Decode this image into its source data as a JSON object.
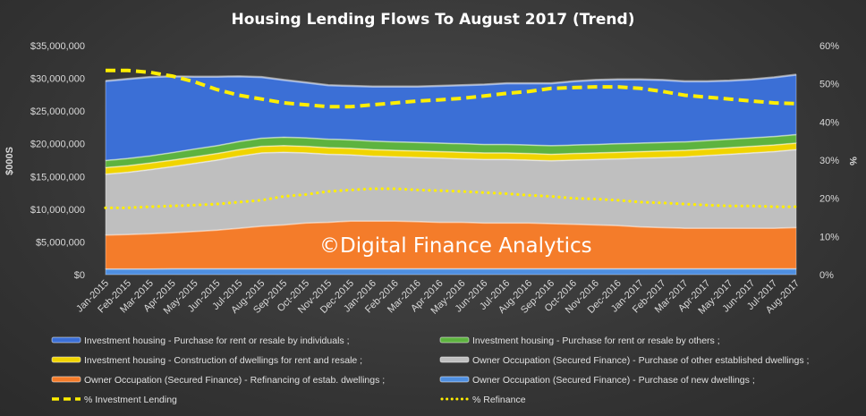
{
  "chart_data": {
    "type": "area",
    "title": "Housing Lending Flows To August 2017 (Trend)",
    "ylabel": "$000S",
    "y2label": "%",
    "ylim": [
      0,
      35000000
    ],
    "y2lim": [
      0,
      60
    ],
    "yticks": [
      "$0",
      "$5,000,000",
      "$10,000,000",
      "$15,000,000",
      "$20,000,000",
      "$25,000,000",
      "$30,000,000",
      "$35,000,000"
    ],
    "y2ticks": [
      "0%",
      "10%",
      "20%",
      "30%",
      "40%",
      "50%",
      "60%"
    ],
    "categories": [
      "Jan-2015",
      "Feb-2015",
      "Mar-2015",
      "Apr-2015",
      "May-2015",
      "Jun-2015",
      "Jul-2015",
      "Aug-2015",
      "Sep-2015",
      "Oct-2015",
      "Nov-2015",
      "Dec-2015",
      "Jan-2016",
      "Feb-2016",
      "Mar-2016",
      "Apr-2016",
      "May-2016",
      "Jun-2016",
      "Jul-2016",
      "Aug-2016",
      "Sep-2016",
      "Oct-2016",
      "Nov-2016",
      "Dec-2016",
      "Jan-2017",
      "Feb-2017",
      "Mar-2017",
      "Apr-2017",
      "May-2017",
      "Jun-2017",
      "Jul-2017",
      "Aug-2017"
    ],
    "stacked_series": [
      {
        "name": "Owner Occupation (Secured Finance) - Purchase of new dwellings ;",
        "color": "#4f8fe0",
        "values": [
          900000,
          900000,
          900000,
          950000,
          950000,
          950000,
          950000,
          950000,
          950000,
          950000,
          950000,
          950000,
          950000,
          950000,
          950000,
          950000,
          950000,
          950000,
          950000,
          950000,
          950000,
          950000,
          950000,
          950000,
          950000,
          950000,
          950000,
          950000,
          950000,
          950000,
          950000,
          950000
        ]
      },
      {
        "name": "Owner Occupation (Secured Finance) - Refinancing of estab. dwellings ;",
        "color": "#f47c2a",
        "values": [
          5200000,
          5300000,
          5400000,
          5500000,
          5700000,
          5900000,
          6200000,
          6500000,
          6700000,
          7000000,
          7100000,
          7300000,
          7300000,
          7300000,
          7200000,
          7100000,
          7100000,
          7000000,
          7000000,
          7000000,
          6900000,
          6800000,
          6700000,
          6600000,
          6400000,
          6300000,
          6200000,
          6200000,
          6200000,
          6200000,
          6200000,
          6300000
        ]
      },
      {
        "name": "Owner Occupation (Secured Finance) - Purchase of other established dwellings ;",
        "color": "#bfbfbf",
        "values": [
          9300000,
          9500000,
          9800000,
          10100000,
          10400000,
          10700000,
          11000000,
          11200000,
          11100000,
          10700000,
          10400000,
          10100000,
          9900000,
          9800000,
          9800000,
          9800000,
          9700000,
          9700000,
          9700000,
          9600000,
          9600000,
          9800000,
          10000000,
          10200000,
          10500000,
          10700000,
          10900000,
          11100000,
          11300000,
          11500000,
          11700000,
          11900000
        ]
      },
      {
        "name": "Investment housing - Construction of dwellings for rent and resale ;",
        "color": "#f0d400",
        "values": [
          1000000,
          1000000,
          1000000,
          1000000,
          1000000,
          1000000,
          1000000,
          1000000,
          1000000,
          1000000,
          1000000,
          1000000,
          1000000,
          1000000,
          1000000,
          1000000,
          1000000,
          1000000,
          1000000,
          1000000,
          1000000,
          1000000,
          1000000,
          1000000,
          1000000,
          1000000,
          1000000,
          1000000,
          1000000,
          1000000,
          1000000,
          1000000
        ]
      },
      {
        "name": "Investment housing - Purchase for rent or resale by others ;",
        "color": "#5db33f",
        "values": [
          1100000,
          1100000,
          1100000,
          1150000,
          1200000,
          1200000,
          1250000,
          1250000,
          1300000,
          1300000,
          1300000,
          1300000,
          1300000,
          1300000,
          1300000,
          1300000,
          1300000,
          1300000,
          1300000,
          1300000,
          1300000,
          1300000,
          1300000,
          1300000,
          1300000,
          1300000,
          1300000,
          1300000,
          1300000,
          1300000,
          1300000,
          1300000
        ]
      },
      {
        "name": "Investment housing - Purchase for rent or resale by individuals ;",
        "color": "#3b6fd6",
        "values": [
          12100000,
          12100000,
          12000000,
          11600000,
          11000000,
          10500000,
          9900000,
          9300000,
          8700000,
          8400000,
          8200000,
          8200000,
          8300000,
          8400000,
          8500000,
          8700000,
          8900000,
          9100000,
          9300000,
          9400000,
          9500000,
          9700000,
          9800000,
          9800000,
          9700000,
          9500000,
          9200000,
          9000000,
          8900000,
          8900000,
          9000000,
          9100000
        ]
      }
    ],
    "line_series": [
      {
        "name": "% Investment Lending",
        "style": "dashed",
        "color": "#ffee00",
        "values": [
          53.5,
          53.5,
          53,
          52,
          50.5,
          48.5,
          47,
          46,
          45,
          44.5,
          44,
          44,
          44.5,
          45,
          45.5,
          45.8,
          46.2,
          46.8,
          47.5,
          48,
          48.8,
          49,
          49.2,
          49.2,
          48.8,
          48,
          47,
          46.5,
          46,
          45.5,
          45,
          44.8
        ]
      },
      {
        "name": "% Refinance",
        "style": "dotted",
        "color": "#ffee00",
        "values": [
          17.5,
          17.5,
          17.8,
          18,
          18.2,
          18.5,
          19,
          19.5,
          20.5,
          21,
          21.8,
          22.2,
          22.5,
          22.5,
          22.2,
          22,
          21.8,
          21.5,
          21.2,
          20.8,
          20.5,
          20,
          19.8,
          19.5,
          19,
          18.8,
          18.5,
          18.2,
          18,
          18,
          17.8,
          17.8
        ]
      }
    ],
    "legend": {
      "position": "bottom",
      "items": [
        "Investment housing - Purchase for rent or resale by individuals ;",
        "Investment housing - Purchase for rent or resale by others ;",
        "Investment housing - Construction of dwellings for rent and resale ;",
        "Owner Occupation (Secured Finance) - Purchase of other established dwellings ;",
        "Owner Occupation (Secured Finance) - Refinancing of estab. dwellings ;",
        "Owner Occupation (Secured Finance) - Purchase of new dwellings ;",
        "% Investment Lending",
        "% Refinance"
      ]
    },
    "watermark": "©Digital Finance Analytics",
    "grid": false
  }
}
